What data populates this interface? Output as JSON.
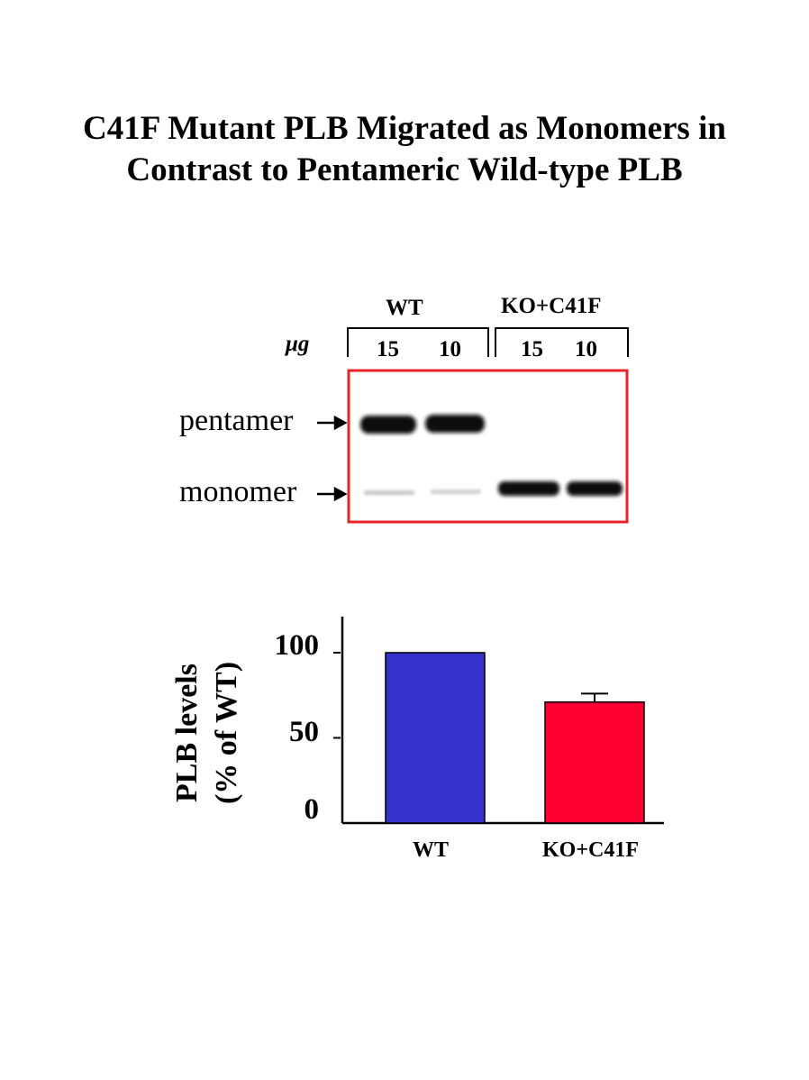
{
  "title_line1": "C41F Mutant PLB Migrated as Monomers in",
  "title_line2": "Contrast to Pentameric Wild-type PLB",
  "blot": {
    "group_wt": "WT",
    "group_ko": "KO+C41F",
    "unit": "μg",
    "lanes": [
      "15",
      "10",
      "15",
      "10"
    ],
    "pentamer_label": "pentamer",
    "monomer_label": "monomer",
    "frame_color": "#e8232a"
  },
  "chart_data": {
    "type": "bar",
    "categories": [
      "WT",
      "KO+C41F"
    ],
    "values": [
      100,
      71
    ],
    "errors": [
      0,
      5
    ],
    "colors": [
      "#3333cc",
      "#ff0033"
    ],
    "ylabel_line1": "PLB levels",
    "ylabel_line2": "(% of WT)",
    "yticks": [
      0,
      50,
      100
    ],
    "ylim": [
      0,
      120
    ]
  }
}
